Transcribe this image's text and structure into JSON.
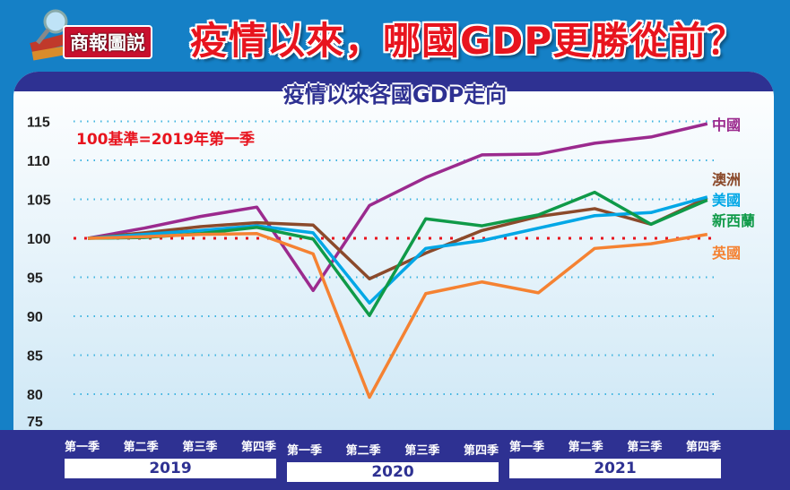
{
  "header": {
    "badge": "商報圖説",
    "title": "疫情以來，哪國GDP更勝從前？"
  },
  "chart_data": {
    "type": "line",
    "title": "疫情以來各國GDP走向",
    "annotation": "100基準=2019年第一季",
    "ylim": [
      75,
      116
    ],
    "yticks": [
      75,
      80,
      85,
      90,
      95,
      100,
      105,
      110,
      115
    ],
    "baseline": 100,
    "categories": [
      "第一季",
      "第二季",
      "第三季",
      "第四季",
      "第一季",
      "第二季",
      "第三季",
      "第四季",
      "第一季",
      "第二季",
      "第三季",
      "第四季"
    ],
    "years": [
      "2019",
      "2020",
      "2021"
    ],
    "series": [
      {
        "name": "中國",
        "color": "#9b2a8e",
        "values": [
          100,
          101.3,
          102.8,
          104,
          93.3,
          104.2,
          107.8,
          110.7,
          110.8,
          112.2,
          113,
          114.7
        ]
      },
      {
        "name": "澳洲",
        "color": "#8b4a2b",
        "values": [
          100,
          100.7,
          101.5,
          102,
          101.7,
          94.8,
          98.1,
          101,
          102.8,
          103.8,
          101.8,
          105.2
        ]
      },
      {
        "name": "美國",
        "color": "#00a7e6",
        "values": [
          100,
          100.5,
          101,
          101.6,
          100.7,
          91.7,
          98.7,
          99.7,
          101.3,
          102.9,
          103.3,
          105.3
        ]
      },
      {
        "name": "新西蘭",
        "color": "#0f9a48",
        "values": [
          100,
          100.1,
          100.6,
          101.4,
          99.9,
          90.1,
          102.5,
          101.6,
          103,
          105.9,
          101.8,
          104.9
        ]
      },
      {
        "name": "英國",
        "color": "#f58232",
        "values": [
          100,
          100.2,
          100.5,
          100.6,
          98,
          79.6,
          92.9,
          94.4,
          93,
          98.7,
          99.3,
          100.5
        ]
      }
    ]
  }
}
